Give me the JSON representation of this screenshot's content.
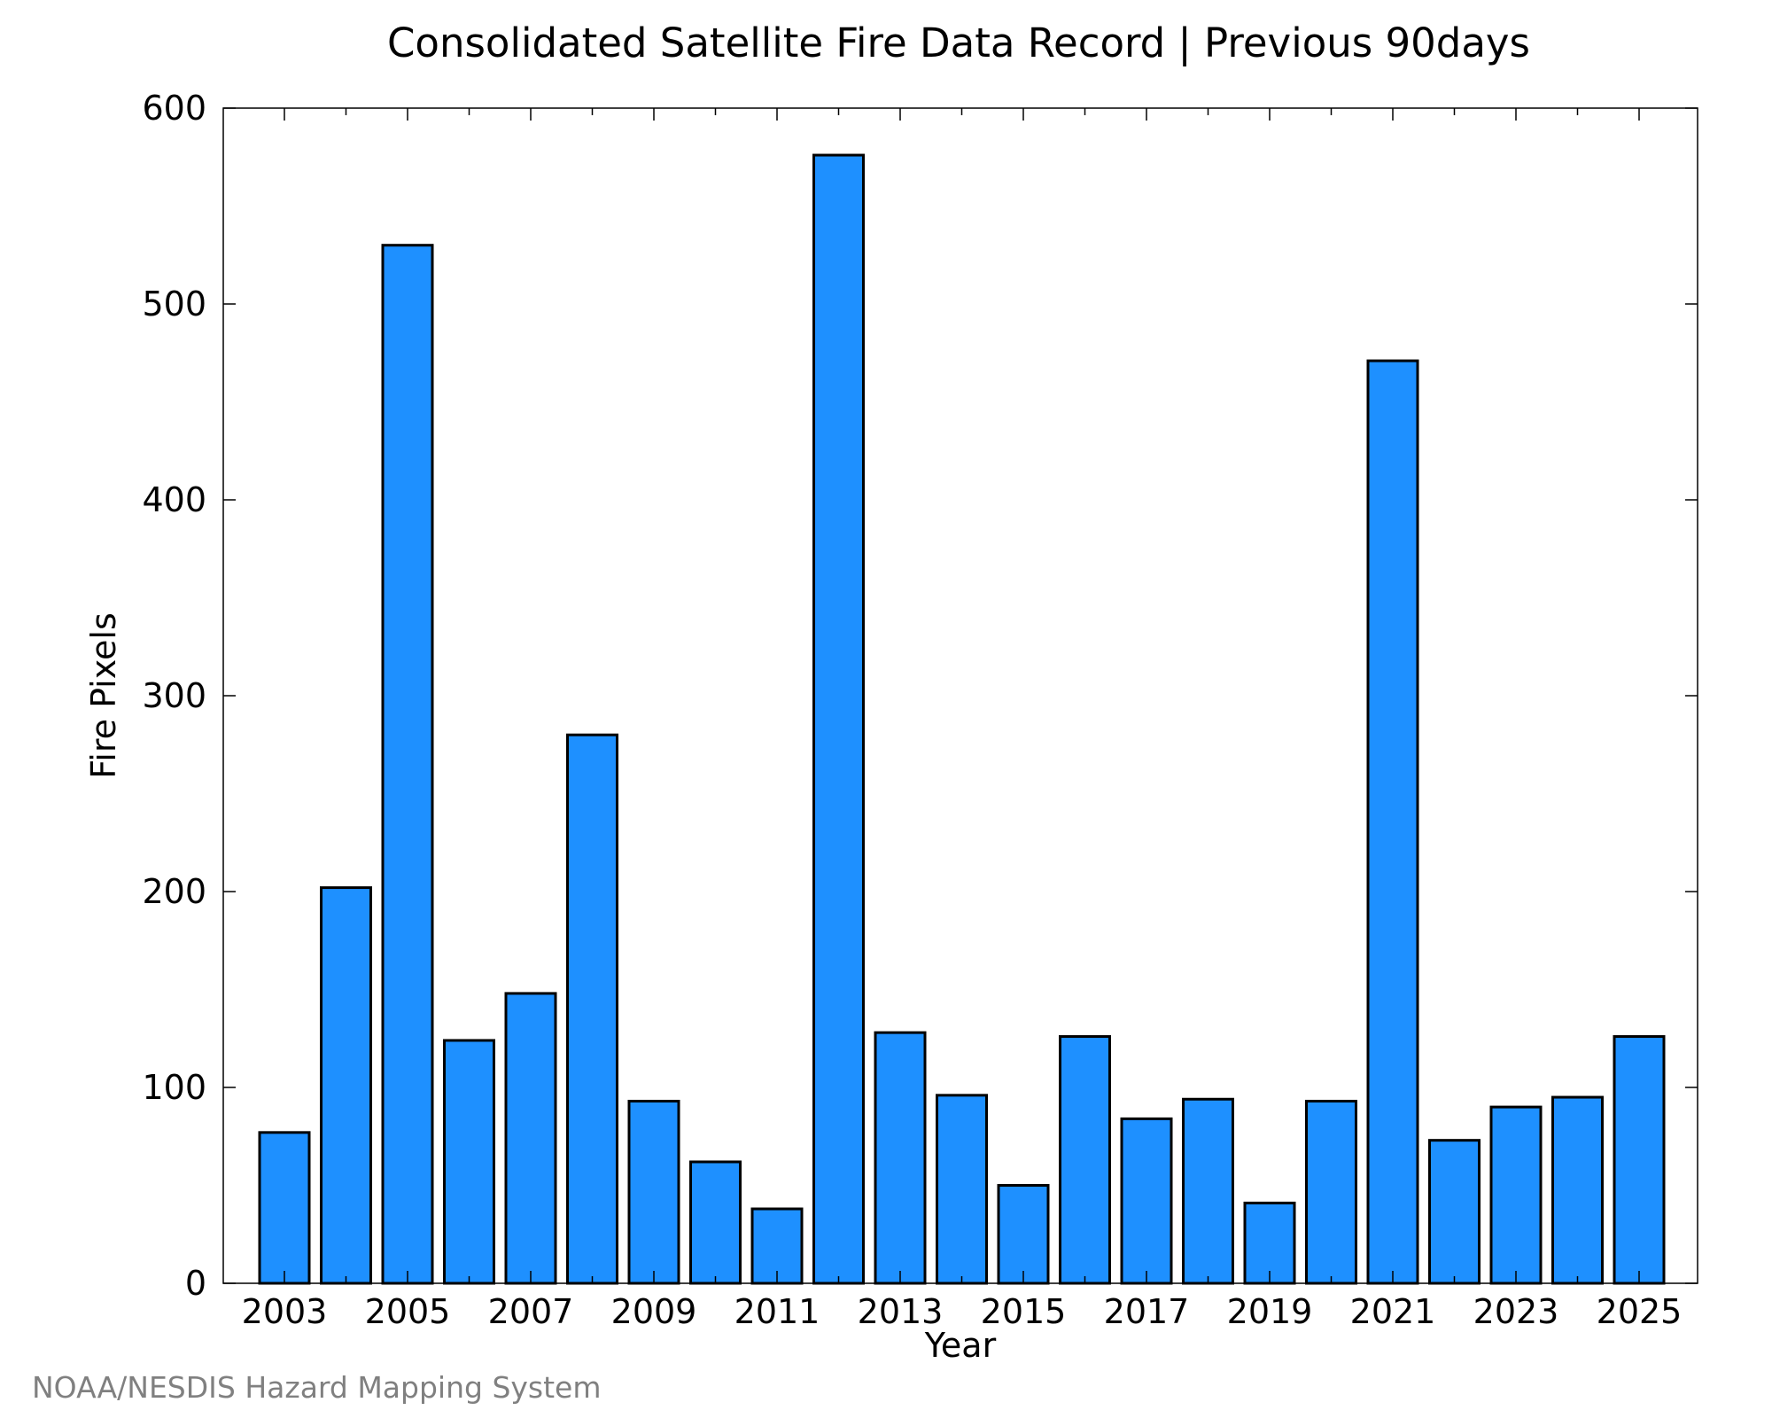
{
  "credit": "NOAA/NESDIS Hazard Mapping System",
  "colors": {
    "bar_fill": "#1E90FF",
    "bar_stroke": "#000000",
    "frame": "#000000",
    "credit_text": "#808080"
  },
  "chart_data": {
    "type": "bar",
    "title": "Consolidated Satellite Fire Data Record | Previous 90days",
    "xlabel": "Year",
    "ylabel": "Fire Pixels",
    "categories": [
      "2003",
      "2004",
      "2005",
      "2006",
      "2007",
      "2008",
      "2009",
      "2010",
      "2011",
      "2012",
      "2013",
      "2014",
      "2015",
      "2016",
      "2017",
      "2018",
      "2019",
      "2020",
      "2021",
      "2022",
      "2023",
      "2024",
      "2025"
    ],
    "values": [
      77,
      202,
      530,
      124,
      148,
      280,
      93,
      62,
      38,
      576,
      128,
      96,
      50,
      126,
      84,
      94,
      41,
      93,
      471,
      73,
      90,
      95,
      126
    ],
    "xticks": [
      "2003",
      "2005",
      "2007",
      "2009",
      "2011",
      "2013",
      "2015",
      "2017",
      "2019",
      "2021",
      "2023",
      "2025"
    ],
    "yticks": [
      0,
      100,
      200,
      300,
      400,
      500,
      600
    ],
    "ylim": [
      0,
      600
    ],
    "grid": false,
    "legend": "none"
  }
}
